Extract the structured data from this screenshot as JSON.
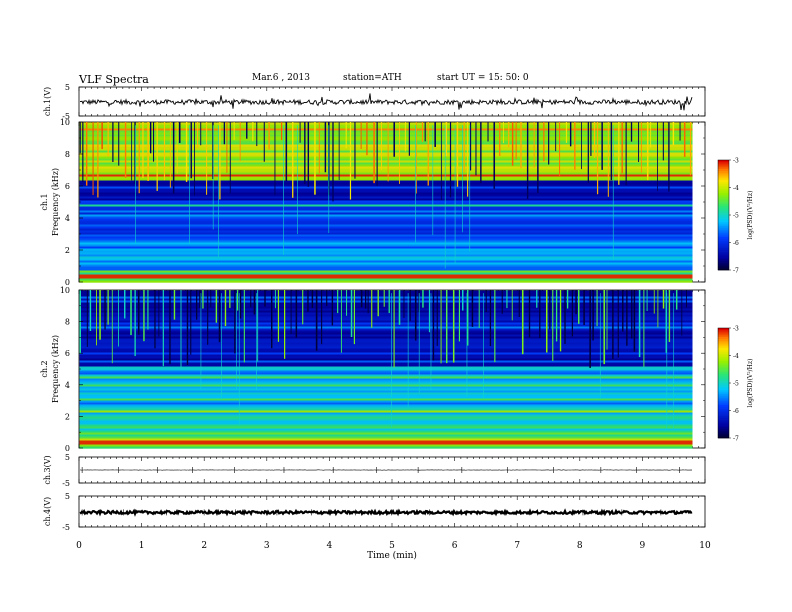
{
  "header": {
    "title": "VLF Spectra",
    "date": "Mar.6 , 2013",
    "station": "station=ATH",
    "start": "start UT = 15: 50: 0"
  },
  "chart_data": [
    {
      "type": "line",
      "panel": "ch1-waveform",
      "ylabel": "ch.1(V)",
      "yticks": [
        "5",
        "-5"
      ],
      "ylim": [
        -5,
        5
      ],
      "xlim": [
        0,
        10
      ],
      "baseline": -0.2,
      "data_end": 9.8
    },
    {
      "type": "heatmap",
      "panel": "ch1-spectrogram",
      "ylabel_channel": "ch.1",
      "ylabel": "Frequency (kHz)",
      "yticks": [
        "0",
        "2",
        "4",
        "6",
        "8",
        "10"
      ],
      "ylim": [
        0,
        10
      ],
      "xlim": [
        0,
        10
      ],
      "data_end": 9.8,
      "colorbar": {
        "label": "log(PSD)(V²/Hz)",
        "range": [
          -7,
          -3
        ],
        "ticks": [
          "-3",
          "-4",
          "-5",
          "-6",
          "-7"
        ]
      }
    },
    {
      "type": "heatmap",
      "panel": "ch2-spectrogram",
      "ylabel_channel": "ch.2",
      "ylabel": "Frequency (kHz)",
      "yticks": [
        "0",
        "2",
        "4",
        "6",
        "8",
        "10"
      ],
      "ylim": [
        0,
        10
      ],
      "xlim": [
        0,
        10
      ],
      "data_end": 9.8,
      "colorbar": {
        "label": "log(PSD)(V²/Hz)",
        "range": [
          -7,
          -3
        ],
        "ticks": [
          "-3",
          "-4",
          "-5",
          "-6",
          "-7"
        ]
      }
    },
    {
      "type": "line",
      "panel": "ch3-waveform",
      "ylabel": "ch.3(V)",
      "yticks": [
        "5",
        "-5"
      ],
      "ylim": [
        -5,
        5
      ],
      "xlim": [
        0,
        10
      ],
      "baseline": 0,
      "data_end": 9.8
    },
    {
      "type": "line",
      "panel": "ch4-waveform",
      "ylabel": "ch.4(V)",
      "yticks": [
        "5",
        "-5"
      ],
      "ylim": [
        -5,
        5
      ],
      "xlim": [
        0,
        10
      ],
      "baseline": -0.3,
      "data_end": 9.8
    }
  ],
  "xaxis": {
    "label": "Time (min)",
    "ticks": [
      "0",
      "1",
      "2",
      "3",
      "4",
      "5",
      "6",
      "7",
      "8",
      "9",
      "10"
    ]
  }
}
